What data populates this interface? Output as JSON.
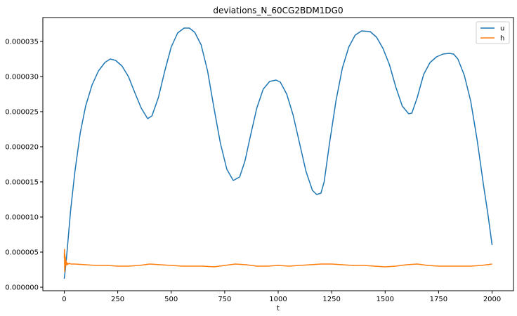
{
  "chart_data": {
    "type": "line",
    "title": "deviations_N_60CG2BDM1DG0",
    "xlabel": "t",
    "ylabel": "",
    "xlim": [
      -100,
      2100
    ],
    "ylim": [
      -5e-07,
      3.84e-05
    ],
    "x_ticks": [
      0,
      250,
      500,
      750,
      1000,
      1250,
      1500,
      1750,
      2000
    ],
    "x_tick_labels": [
      "0",
      "250",
      "500",
      "750",
      "1000",
      "1250",
      "1500",
      "1750",
      "2000"
    ],
    "y_ticks": [
      0,
      5e-06,
      1e-05,
      1.5e-05,
      2e-05,
      2.5e-05,
      3e-05,
      3.5e-05
    ],
    "y_tick_labels": [
      "0.000000",
      "0.000005",
      "0.000010",
      "0.000015",
      "0.000020",
      "0.000025",
      "0.000030",
      "0.000035"
    ],
    "grid": false,
    "legend_position": "top-right",
    "series": [
      {
        "name": "u",
        "color": "#1f77b4",
        "x": [
          0,
          5,
          10,
          20,
          30,
          50,
          75,
          100,
          130,
          160,
          190,
          215,
          240,
          270,
          300,
          330,
          360,
          390,
          410,
          440,
          470,
          500,
          530,
          560,
          585,
          610,
          640,
          670,
          700,
          730,
          760,
          790,
          820,
          845,
          870,
          900,
          930,
          960,
          990,
          1010,
          1040,
          1070,
          1100,
          1130,
          1160,
          1180,
          1200,
          1215,
          1240,
          1270,
          1300,
          1330,
          1360,
          1390,
          1430,
          1460,
          1490,
          1520,
          1550,
          1580,
          1610,
          1625,
          1650,
          1680,
          1710,
          1740,
          1770,
          1800,
          1820,
          1840,
          1870,
          1900,
          1930,
          1960,
          1980,
          2000
        ],
        "y": [
          1.2e-06,
          2.5e-06,
          4e-06,
          7.5e-06,
          1.1e-05,
          1.65e-05,
          2.2e-05,
          2.58e-05,
          2.88e-05,
          3.08e-05,
          3.2e-05,
          3.25e-05,
          3.23e-05,
          3.15e-05,
          3e-05,
          2.77e-05,
          2.55e-05,
          2.4e-05,
          2.44e-05,
          2.7e-05,
          3.08e-05,
          3.42e-05,
          3.62e-05,
          3.69e-05,
          3.69e-05,
          3.63e-05,
          3.45e-05,
          3.08e-05,
          2.55e-05,
          2.05e-05,
          1.68e-05,
          1.52e-05,
          1.57e-05,
          1.8e-05,
          2.15e-05,
          2.55e-05,
          2.82e-05,
          2.93e-05,
          2.95e-05,
          2.92e-05,
          2.75e-05,
          2.45e-05,
          2.05e-05,
          1.65e-05,
          1.38e-05,
          1.32e-05,
          1.34e-05,
          1.5e-05,
          2.05e-05,
          2.65e-05,
          3.12e-05,
          3.42e-05,
          3.59e-05,
          3.65e-05,
          3.64e-05,
          3.56e-05,
          3.4e-05,
          3.17e-05,
          2.85e-05,
          2.58e-05,
          2.47e-05,
          2.48e-05,
          2.7e-05,
          3.03e-05,
          3.2e-05,
          3.28e-05,
          3.32e-05,
          3.33e-05,
          3.32e-05,
          3.25e-05,
          3.02e-05,
          2.65e-05,
          2.1e-05,
          1.45e-05,
          1.05e-05,
          6e-06
        ]
      },
      {
        "name": "h",
        "color": "#ff7f0e",
        "x": [
          0,
          1,
          2,
          3,
          4,
          5,
          6,
          7,
          8,
          9,
          10,
          12,
          14,
          17,
          20,
          25,
          30,
          50,
          100,
          150,
          200,
          250,
          300,
          350,
          400,
          450,
          500,
          550,
          600,
          650,
          700,
          750,
          800,
          850,
          900,
          950,
          1000,
          1050,
          1100,
          1150,
          1200,
          1250,
          1300,
          1350,
          1400,
          1450,
          1500,
          1550,
          1600,
          1650,
          1700,
          1750,
          1800,
          1850,
          1900,
          1950,
          2000
        ],
        "y": [
          4.2e-06,
          5.4e-06,
          2.2e-06,
          4.7e-06,
          2.7e-06,
          4.3e-06,
          3.1e-06,
          3.9e-06,
          3.1e-06,
          3.7e-06,
          3.2e-06,
          3.5e-06,
          3.2e-06,
          3.4e-06,
          3.3e-06,
          3.4e-06,
          3.3e-06,
          3.3e-06,
          3.2e-06,
          3.1e-06,
          3.1e-06,
          3e-06,
          3e-06,
          3.1e-06,
          3.3e-06,
          3.2e-06,
          3.1e-06,
          3e-06,
          3e-06,
          3e-06,
          2.9e-06,
          3.1e-06,
          3.3e-06,
          3.2e-06,
          3e-06,
          3e-06,
          3.1e-06,
          3e-06,
          3.1e-06,
          3.2e-06,
          3.3e-06,
          3.3e-06,
          3.2e-06,
          3.1e-06,
          3.1e-06,
          3e-06,
          2.9e-06,
          3e-06,
          3.2e-06,
          3.3e-06,
          3.1e-06,
          3e-06,
          3e-06,
          3e-06,
          3e-06,
          3.1e-06,
          3.3e-06
        ]
      }
    ]
  }
}
